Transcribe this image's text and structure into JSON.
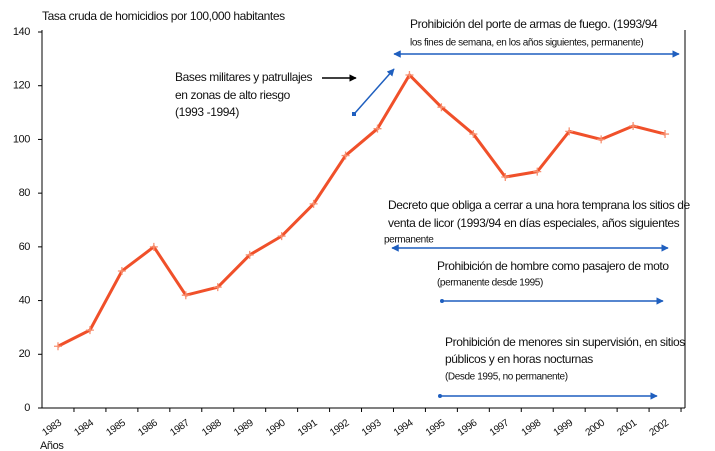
{
  "chart_data": {
    "type": "line",
    "y_label": "Tasa cruda de homicidios por 100,000 habitantes",
    "x_label": "Años",
    "categories": [
      "1983",
      "1984",
      "1985",
      "1986",
      "1987",
      "1988",
      "1989",
      "1990",
      "1991",
      "1992",
      "1993",
      "1994",
      "1995",
      "1996",
      "1997",
      "1998",
      "1999",
      "2000",
      "2001",
      "2002"
    ],
    "values": [
      23,
      29,
      51,
      60,
      42,
      45,
      57,
      64,
      76,
      94,
      104,
      124,
      112,
      102,
      86,
      88,
      103,
      100,
      105,
      102
    ],
    "color": "#f0502a",
    "marker_color": "#f79070",
    "ylim": [
      0,
      140
    ],
    "yticks": [
      0,
      20,
      40,
      60,
      80,
      100,
      120,
      140
    ],
    "annotations": [
      [
        "Bases militares y patrullajes",
        "en zonas de alto riesgo",
        "(1993      -1994)"
      ],
      [
        "Prohibición del porte de armas de fuego. (1993/94",
        "los fines de semana, en los años siguientes, permanente)"
      ],
      [
        "Decreto que obliga a cerrar a una hora temprana los sitios de",
        "venta de licor (1993/94 en días especiales, años siguientes",
        "permanente"
      ],
      [
        "Prohibición de hombre como pasajero de moto",
        "(permanente desde 1995)"
      ],
      [
        "Prohibición de menores sin supervisión, en sitios",
        "públicos y en horas nocturnas",
        "(Desde 1995,  no permanente)"
      ]
    ]
  }
}
